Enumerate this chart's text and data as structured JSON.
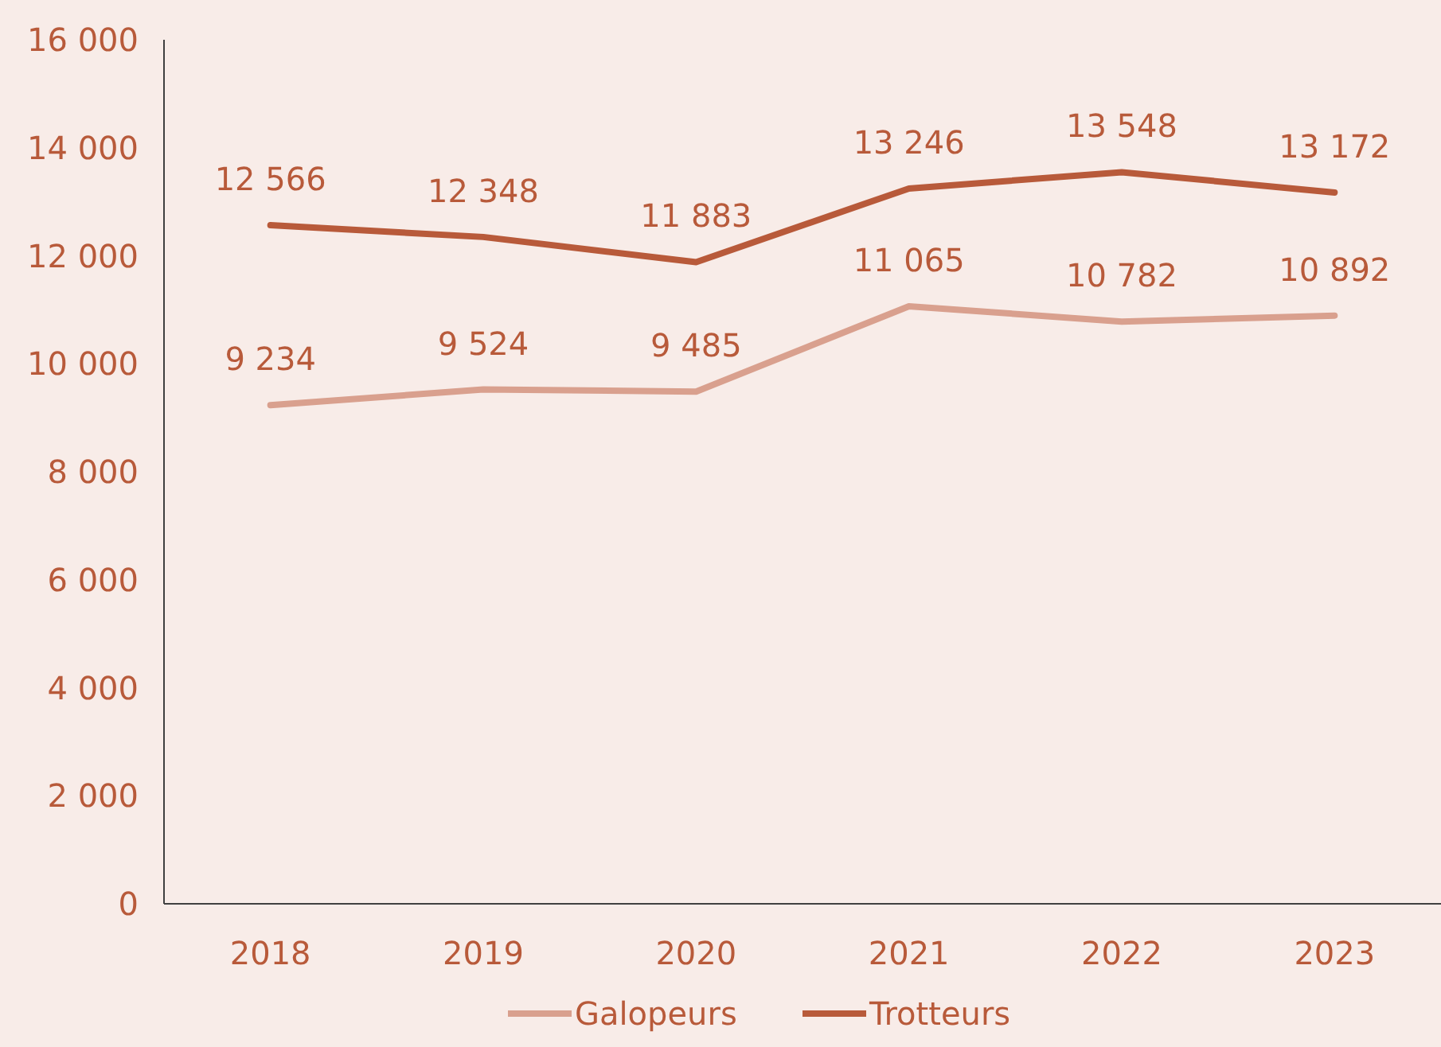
{
  "chart_data": {
    "type": "line",
    "categories": [
      "2018",
      "2019",
      "2020",
      "2021",
      "2022",
      "2023"
    ],
    "series": [
      {
        "name": "Galopeurs",
        "color": "#d9a08e",
        "values": [
          9234,
          9524,
          9485,
          11065,
          10782,
          10892
        ]
      },
      {
        "name": "Trotteurs",
        "color": "#b85a3a",
        "values": [
          12566,
          12348,
          11883,
          13246,
          13548,
          13172
        ]
      }
    ],
    "ylim": [
      0,
      16000
    ],
    "yticks": [
      {
        "value": 0,
        "label": "0"
      },
      {
        "value": 2000,
        "label": "2 000"
      },
      {
        "value": 4000,
        "label": "4 000"
      },
      {
        "value": 6000,
        "label": "6 000"
      },
      {
        "value": 8000,
        "label": "8 000"
      },
      {
        "value": 10000,
        "label": "10 000"
      },
      {
        "value": 12000,
        "label": "12 000"
      },
      {
        "value": 14000,
        "label": "14 000"
      },
      {
        "value": 16000,
        "label": "16 000"
      }
    ],
    "data_labels": true,
    "legend": "bottom",
    "grid": false,
    "marker": "none",
    "line_style": "solid"
  }
}
